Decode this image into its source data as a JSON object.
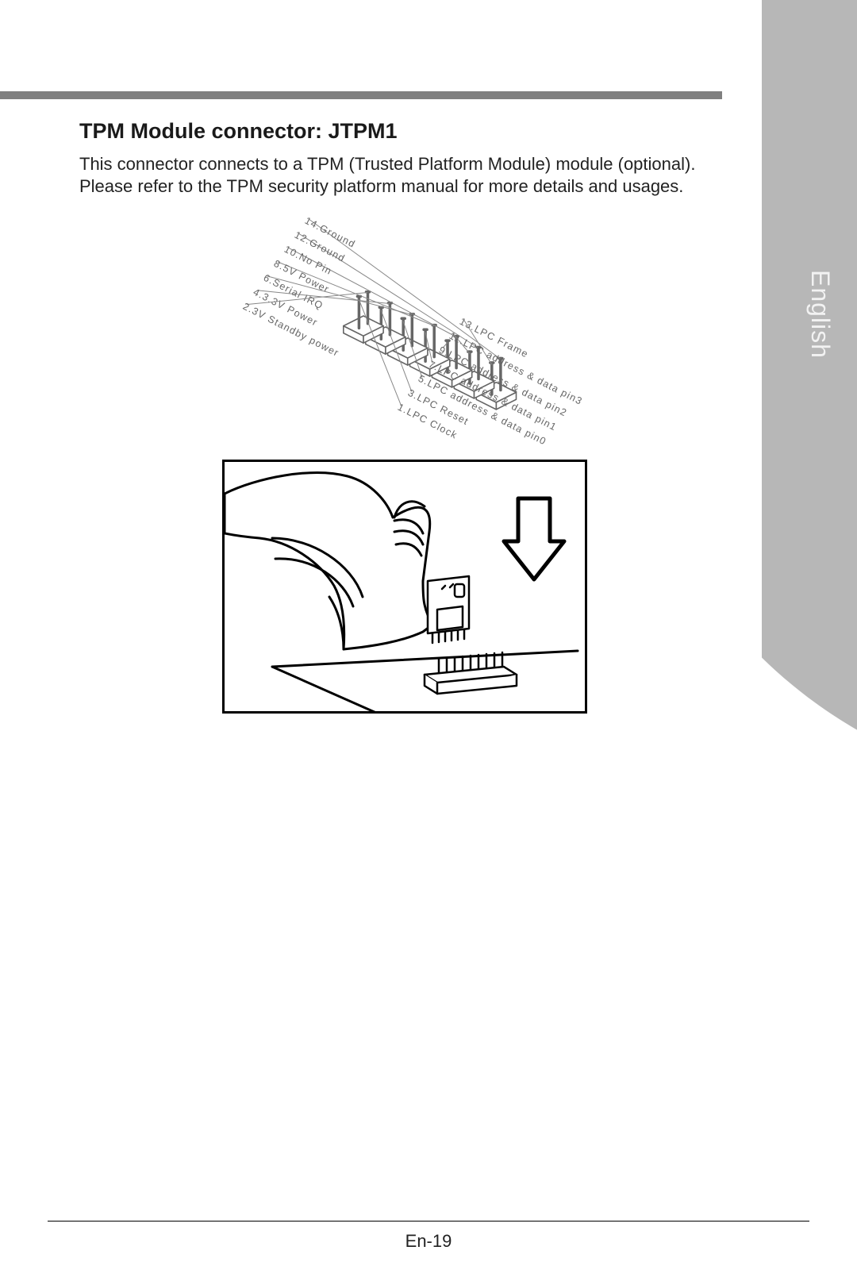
{
  "heading": "TPM Module connector: JTPM1",
  "paragraph": "This connector connects to a TPM (Trusted Platform Module) module (optional). Please refer to the TPM security platform manual for more details and usages.",
  "side_tab_label": "English",
  "page_number": "En-19",
  "diagram": {
    "type": "isometric-pin-header",
    "rows": 2,
    "cols": 7,
    "colors": {
      "body_fill": "#ffffff",
      "body_stroke": "#666666",
      "pin_stroke": "#666666",
      "label_color": "#666666",
      "leader_color": "#888888"
    },
    "pins_top_row_labels": [
      "14.Ground",
      "12.Ground",
      "10.No Pin",
      "8.5V Power",
      "6.Serial IRQ",
      "4.3.3V Power",
      "2.3V Standby power"
    ],
    "pins_bottom_row_labels": [
      "13.LPC Frame",
      "11.LPC address & data pin3",
      "9.LPC address & data pin2",
      "7.LPC address & data pin1",
      "5.LPC address & data pin0",
      "3.LPC Reset",
      "1.LPC Clock"
    ]
  },
  "install_figure": {
    "stroke": "#000000",
    "fill": "#ffffff",
    "arrow_direction": "down"
  }
}
